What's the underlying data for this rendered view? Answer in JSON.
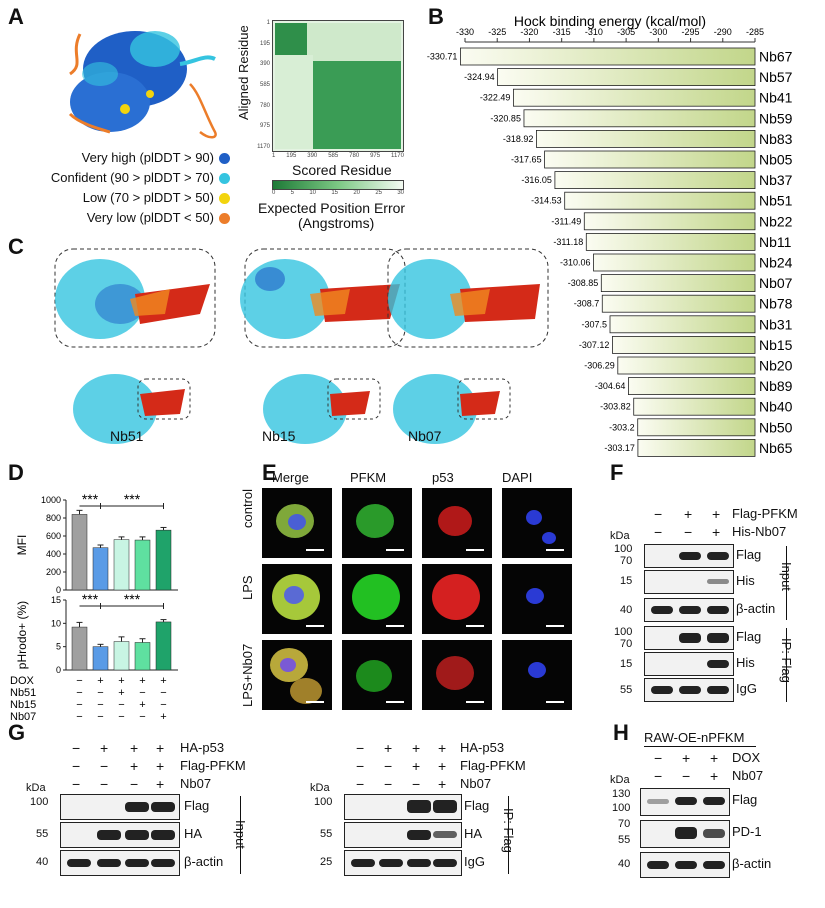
{
  "panels": {
    "A": "A",
    "B": "B",
    "C": "C",
    "D": "D",
    "E": "E",
    "F": "F",
    "G": "G",
    "H": "H"
  },
  "A": {
    "legend": [
      {
        "label": "Very high (plDDT > 90)",
        "color": "#1f5fc6"
      },
      {
        "label": "Confident (90 > plDDT > 70)",
        "color": "#35c4e0"
      },
      {
        "label": "Low (70 > plDDT > 50)",
        "color": "#f2d40d"
      },
      {
        "label": "Very low (plDDT < 50)",
        "color": "#ec7d2a"
      }
    ],
    "pae_ylabel": "Aligned Residue",
    "pae_xlabel": "Scored Residue",
    "pae_ticks": [
      "1",
      "195",
      "390",
      "585",
      "780",
      "975",
      "1170"
    ],
    "colorbar_ticks": [
      "0",
      "5",
      "10",
      "15",
      "20",
      "25",
      "30"
    ],
    "colorbar_title": "Expected Position Error",
    "colorbar_subtitle": "(Angstroms)"
  },
  "chart_data": {
    "type": "bar",
    "title": "Hock binding energy  (kcal/mol)",
    "xlim": [
      -330,
      -285
    ],
    "xticks": [
      "-330",
      "-325",
      "-320",
      "-315",
      "-310",
      "-305",
      "-300",
      "-295",
      "-290",
      "-285"
    ],
    "categories": [
      "Nb67",
      "Nb57",
      "Nb41",
      "Nb59",
      "Nb83",
      "Nb05",
      "Nb37",
      "Nb51",
      "Nb22",
      "Nb11",
      "Nb24",
      "Nb07",
      "Nb78",
      "Nb31",
      "Nb15",
      "Nb20",
      "Nb89",
      "Nb40",
      "Nb50",
      "Nb65"
    ],
    "values": [
      -330.71,
      -324.94,
      -322.49,
      -320.85,
      -318.92,
      -317.65,
      -316.05,
      -314.53,
      -311.49,
      -311.18,
      -310.06,
      -308.85,
      -308.7,
      -307.5,
      -307.12,
      -306.29,
      -304.64,
      -303.82,
      -303.2,
      -303.17
    ],
    "value_labels": [
      "-330.71",
      "-324.94",
      "-322.49",
      "-320.85",
      "-318.92",
      "-317.65",
      "-316.05",
      "-314.53",
      "-311.49",
      "-311.18",
      "-310.06",
      "-308.85",
      "-308.7",
      "-307.5",
      "-307.12",
      "-306.29",
      "-304.64",
      "-303.82",
      "-303.2",
      "-303.17"
    ]
  },
  "C": {
    "labels": [
      "Nb51",
      "Nb15",
      "Nb07"
    ]
  },
  "D": {
    "top": {
      "ylabel": "MFI",
      "yticks": [
        "0",
        "200",
        "400",
        "600",
        "800",
        "1000"
      ],
      "ylim": [
        0,
        1000
      ],
      "values": [
        840,
        470,
        560,
        555,
        665
      ],
      "errors": [
        45,
        30,
        30,
        35,
        30
      ]
    },
    "bottom": {
      "ylabel": "pHrodo+ (%)",
      "yticks": [
        "0",
        "5",
        "10",
        "15"
      ],
      "ylim": [
        0,
        15
      ],
      "values": [
        9.2,
        5.0,
        6.1,
        5.9,
        10.3
      ],
      "errors": [
        1.0,
        0.5,
        1.0,
        0.8,
        0.5
      ]
    },
    "sig": "***",
    "bar_colors": [
      "#a0a0a0",
      "#5a9be6",
      "#c8f5e3",
      "#5fe0a0",
      "#1fa36a"
    ],
    "row_labels": [
      "DOX",
      "Nb51",
      "Nb15",
      "Nb07"
    ],
    "signs": [
      [
        "−",
        "+",
        "+",
        "+",
        "+"
      ],
      [
        "−",
        "−",
        "+",
        "−",
        "−"
      ],
      [
        "−",
        "−",
        "−",
        "+",
        "−"
      ],
      [
        "−",
        "−",
        "−",
        "−",
        "+"
      ]
    ]
  },
  "E": {
    "columns": [
      "Merge",
      "PFKM",
      "p53",
      "DAPI"
    ],
    "rows": [
      "control",
      "LPS",
      "LPS+Nb07"
    ]
  },
  "F": {
    "cond_labels": [
      "Flag-PFKM",
      "His-Nb07"
    ],
    "signs": [
      [
        "−",
        "+",
        "+"
      ],
      [
        "−",
        "−",
        "+"
      ]
    ],
    "kda": "kDa",
    "input_markers": [
      "100",
      "70",
      "15",
      "40"
    ],
    "ip_markers": [
      "100",
      "70",
      "15",
      "55"
    ],
    "input_bands": [
      "Flag",
      "His",
      "β-actin"
    ],
    "ip_bands": [
      "Flag",
      "His",
      "IgG"
    ],
    "input_label": "Input",
    "ip_label": "IP: Flag"
  },
  "G": {
    "cond_labels": [
      "HA-p53",
      "Flag-PFKM",
      "Nb07"
    ],
    "signs": [
      [
        "−",
        "+",
        "+",
        "+"
      ],
      [
        "−",
        "−",
        "+",
        "+"
      ],
      [
        "−",
        "−",
        "−",
        "+"
      ]
    ],
    "kda": "kDa",
    "input_markers": [
      "100",
      "55",
      "40"
    ],
    "ip_markers": [
      "100",
      "55",
      "25"
    ],
    "input_bands": [
      "Flag",
      "HA",
      "β-actin"
    ],
    "ip_bands": [
      "Flag",
      "HA",
      "IgG"
    ],
    "input_label": "Input",
    "ip_label": "IP: Flag"
  },
  "H": {
    "title": "RAW-OE-nPFKM",
    "cond_labels": [
      "DOX",
      "Nb07"
    ],
    "signs": [
      [
        "−",
        "+",
        "+"
      ],
      [
        "−",
        "−",
        "+"
      ]
    ],
    "kda": "kDa",
    "markers": [
      "130",
      "100",
      "70",
      "55",
      "40"
    ],
    "bands": [
      "Flag",
      "PD-1",
      "β-actin"
    ]
  }
}
